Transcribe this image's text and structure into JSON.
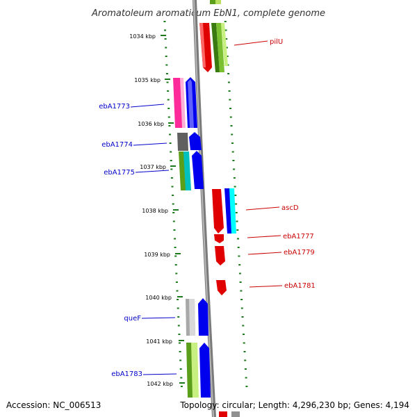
{
  "title": "Aromatoleum aromaticum EbN1, complete genome",
  "footer": {
    "accession": "Accession: NC_006513",
    "topology": "Topology: circular; Length: 4,296,230 bp; Genes: 4,194"
  },
  "colors": {
    "backbone": "#8c8c8c",
    "tick": "#1a7a1a",
    "label_forward": "#0000cc",
    "label_reverse": "#cc0000",
    "tick_text": "#000000"
  },
  "scale": {
    "unit": "kbp",
    "ticks": [
      {
        "label": "1034 kbp"
      },
      {
        "label": "1035 kbp"
      },
      {
        "label": "1036 kbp"
      },
      {
        "label": "1037 kbp"
      },
      {
        "label": "1038 kbp"
      },
      {
        "label": "1039 kbp"
      },
      {
        "label": "1040 kbp"
      },
      {
        "label": "1041 kbp"
      },
      {
        "label": "1042 kbp"
      }
    ]
  },
  "genes": [
    {
      "label": "pilU",
      "strand": "reverse"
    },
    {
      "label": "ebA1773",
      "strand": "forward"
    },
    {
      "label": "ebA1774",
      "strand": "forward"
    },
    {
      "label": "ebA1775",
      "strand": "forward"
    },
    {
      "label": "ascD",
      "strand": "reverse"
    },
    {
      "label": "ebA1777",
      "strand": "reverse"
    },
    {
      "label": "ebA1779",
      "strand": "reverse"
    },
    {
      "label": "ebA1781",
      "strand": "reverse"
    },
    {
      "label": "queF",
      "strand": "forward"
    },
    {
      "label": "ebA1783",
      "strand": "forward"
    }
  ]
}
